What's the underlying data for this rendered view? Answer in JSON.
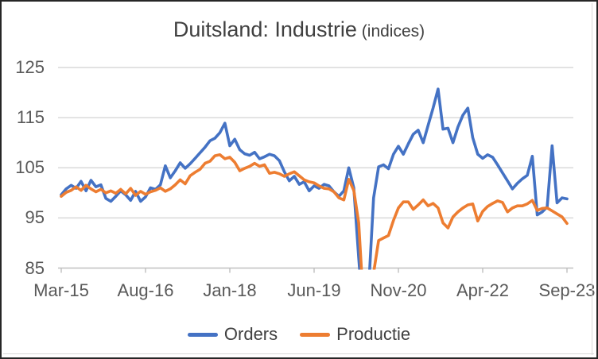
{
  "chart": {
    "title": {
      "main": "Duitsland: Industrie",
      "suffix": " (indices)"
    },
    "colors": {
      "orders": "#4472C4",
      "productie": "#ED7D31",
      "gridline": "#D9D9D9",
      "axis": "#BFBFBF",
      "tick_text": "#595959",
      "title_text": "#404040"
    }
  },
  "chart_data": {
    "type": "line",
    "title": "Duitsland: Industrie (indices)",
    "x_unit": "month",
    "x_start": "Mar-15",
    "x_end": "Sep-23",
    "x_tick_labels": [
      "Mar-15",
      "Aug-16",
      "Jan-18",
      "Jun-19",
      "Nov-20",
      "Apr-22",
      "Sep-23"
    ],
    "x_tick_indices": [
      0,
      17,
      34,
      51,
      68,
      85,
      102
    ],
    "y_ticks": [
      85,
      95,
      105,
      115,
      125
    ],
    "ylim": [
      85,
      125
    ],
    "grid": "horizontal",
    "legend_position": "bottom",
    "months": [
      "Mar-15",
      "Apr-15",
      "May-15",
      "Jun-15",
      "Jul-15",
      "Aug-15",
      "Sep-15",
      "Oct-15",
      "Nov-15",
      "Dec-15",
      "Jan-16",
      "Feb-16",
      "Mar-16",
      "Apr-16",
      "May-16",
      "Jun-16",
      "Jul-16",
      "Aug-16",
      "Sep-16",
      "Oct-16",
      "Nov-16",
      "Dec-16",
      "Jan-17",
      "Feb-17",
      "Mar-17",
      "Apr-17",
      "May-17",
      "Jun-17",
      "Jul-17",
      "Aug-17",
      "Sep-17",
      "Oct-17",
      "Nov-17",
      "Dec-17",
      "Jan-18",
      "Feb-18",
      "Mar-18",
      "Apr-18",
      "May-18",
      "Jun-18",
      "Jul-18",
      "Aug-18",
      "Sep-18",
      "Oct-18",
      "Nov-18",
      "Dec-18",
      "Jan-19",
      "Feb-19",
      "Mar-19",
      "Apr-19",
      "May-19",
      "Jun-19",
      "Jul-19",
      "Aug-19",
      "Sep-19",
      "Oct-19",
      "Nov-19",
      "Dec-19",
      "Jan-20",
      "Feb-20",
      "Mar-20",
      "Apr-20",
      "May-20",
      "Jun-20",
      "Jul-20",
      "Aug-20",
      "Sep-20",
      "Oct-20",
      "Nov-20",
      "Dec-20",
      "Jan-21",
      "Feb-21",
      "Mar-21",
      "Apr-21",
      "May-21",
      "Jun-21",
      "Jul-21",
      "Aug-21",
      "Sep-21",
      "Oct-21",
      "Nov-21",
      "Dec-21",
      "Jan-22",
      "Feb-22",
      "Mar-22",
      "Apr-22",
      "May-22",
      "Jun-22",
      "Jul-22",
      "Aug-22",
      "Sep-22",
      "Oct-22",
      "Nov-22",
      "Dec-22",
      "Jan-23",
      "Feb-23",
      "Mar-23",
      "Apr-23",
      "May-23",
      "Jun-23",
      "Jul-23",
      "Aug-23",
      "Sep-23"
    ],
    "series": [
      {
        "name": "Orders",
        "color": "#4472C4",
        "values": [
          99.6,
          100.8,
          101.5,
          100.9,
          102.3,
          100.4,
          102.5,
          101.2,
          101.6,
          98.9,
          98.3,
          99.3,
          100.4,
          99.6,
          98.5,
          100.3,
          98.3,
          99.2,
          101.0,
          100.7,
          101.6,
          105.4,
          103.0,
          104.4,
          106.0,
          104.9,
          105.8,
          106.9,
          108.0,
          109.1,
          110.4,
          110.9,
          112.0,
          113.9,
          109.4,
          110.7,
          108.6,
          107.8,
          107.5,
          108.1,
          106.8,
          107.2,
          107.7,
          107.4,
          106.4,
          104.2,
          102.4,
          103.3,
          101.7,
          102.2,
          100.4,
          101.4,
          100.9,
          101.7,
          101.4,
          100.2,
          99.3,
          100.4,
          105.0,
          101.0,
          87.0,
          74.0,
          81.0,
          99.0,
          105.2,
          105.6,
          104.8,
          107.7,
          109.3,
          107.7,
          109.8,
          111.7,
          112.5,
          110.0,
          113.5,
          116.9,
          120.7,
          112.7,
          112.9,
          110.0,
          113.1,
          115.5,
          116.9,
          111.0,
          107.7,
          106.9,
          107.6,
          107.1,
          105.6,
          104.0,
          102.4,
          100.8,
          101.9,
          102.8,
          103.5,
          107.3,
          95.6,
          96.2,
          97.2,
          109.4,
          98.0,
          99.0,
          98.8
        ]
      },
      {
        "name": "Productie",
        "color": "#ED7D31",
        "values": [
          99.3,
          100.1,
          100.5,
          101.2,
          100.5,
          101.5,
          100.8,
          100.2,
          100.7,
          100.0,
          100.4,
          99.9,
          100.7,
          99.8,
          100.9,
          99.5,
          100.3,
          99.7,
          100.2,
          100.5,
          101.0,
          100.3,
          100.8,
          101.6,
          102.6,
          101.8,
          103.4,
          104.1,
          104.7,
          105.9,
          106.3,
          107.4,
          107.6,
          106.8,
          107.1,
          106.1,
          104.4,
          104.9,
          105.3,
          105.9,
          105.3,
          105.6,
          103.9,
          104.1,
          103.8,
          103.3,
          103.8,
          104.2,
          103.4,
          102.6,
          102.2,
          102.0,
          101.4,
          100.9,
          100.8,
          100.2,
          99.0,
          98.6,
          102.7,
          100.5,
          94.0,
          77.0,
          79.0,
          84.0,
          90.5,
          91.0,
          91.5,
          94.5,
          97.0,
          98.2,
          98.2,
          96.7,
          97.6,
          98.6,
          97.4,
          97.9,
          97.0,
          94.0,
          93.0,
          95.2,
          96.2,
          97.0,
          97.6,
          97.8,
          94.4,
          96.3,
          97.3,
          97.9,
          98.4,
          98.1,
          96.2,
          97.0,
          97.4,
          97.4,
          97.8,
          98.5,
          96.5,
          96.9,
          97.0,
          96.4,
          95.8,
          95.2,
          93.9
        ]
      }
    ]
  }
}
